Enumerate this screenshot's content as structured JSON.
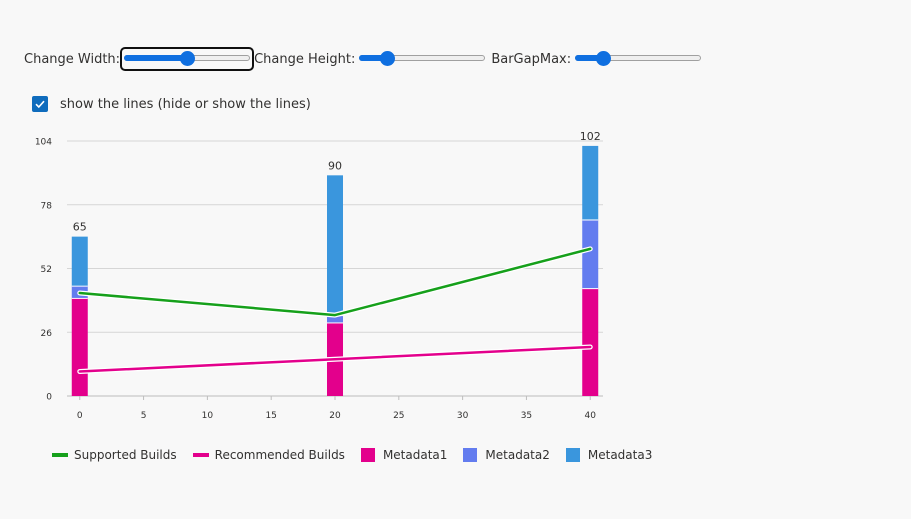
{
  "controls": {
    "width_label": "Change Width:",
    "height_label": "Change Height:",
    "bargap_label": "BarGapMax:",
    "width_value": 0.5,
    "height_value": 0.22,
    "bargap_value": 0.22
  },
  "checkbox": {
    "label": "show the lines (hide or show the lines)",
    "checked": true
  },
  "colors": {
    "supported": "#16a01b",
    "recommended": "#e3008c",
    "metadata1": "#e3008c",
    "metadata2": "#637cef",
    "metadata3": "#3a96dd"
  },
  "chart_data": {
    "type": "bar",
    "stacked": true,
    "x": [
      0,
      20,
      40
    ],
    "xticks": [
      "0",
      "5",
      "10",
      "15",
      "20",
      "25",
      "30",
      "35",
      "40"
    ],
    "xtick_values": [
      0,
      5,
      10,
      15,
      20,
      25,
      30,
      35,
      40
    ],
    "yticks": [
      "0",
      "26",
      "52",
      "78",
      "104"
    ],
    "ylim": [
      0,
      104
    ],
    "xlim": [
      -1,
      41
    ],
    "totals": [
      "65",
      "90",
      "102"
    ],
    "bar_series": [
      {
        "name": "Metadata1",
        "values": [
          40,
          30,
          44
        ]
      },
      {
        "name": "Metadata2",
        "values": [
          5,
          3,
          28
        ]
      },
      {
        "name": "Metadata3",
        "values": [
          20,
          57,
          30
        ]
      }
    ],
    "line_series": [
      {
        "name": "Supported Builds",
        "values": [
          42,
          33,
          60
        ]
      },
      {
        "name": "Recommended Builds",
        "values": [
          10,
          15,
          20
        ]
      }
    ],
    "grid": true,
    "legend": "bottom"
  }
}
